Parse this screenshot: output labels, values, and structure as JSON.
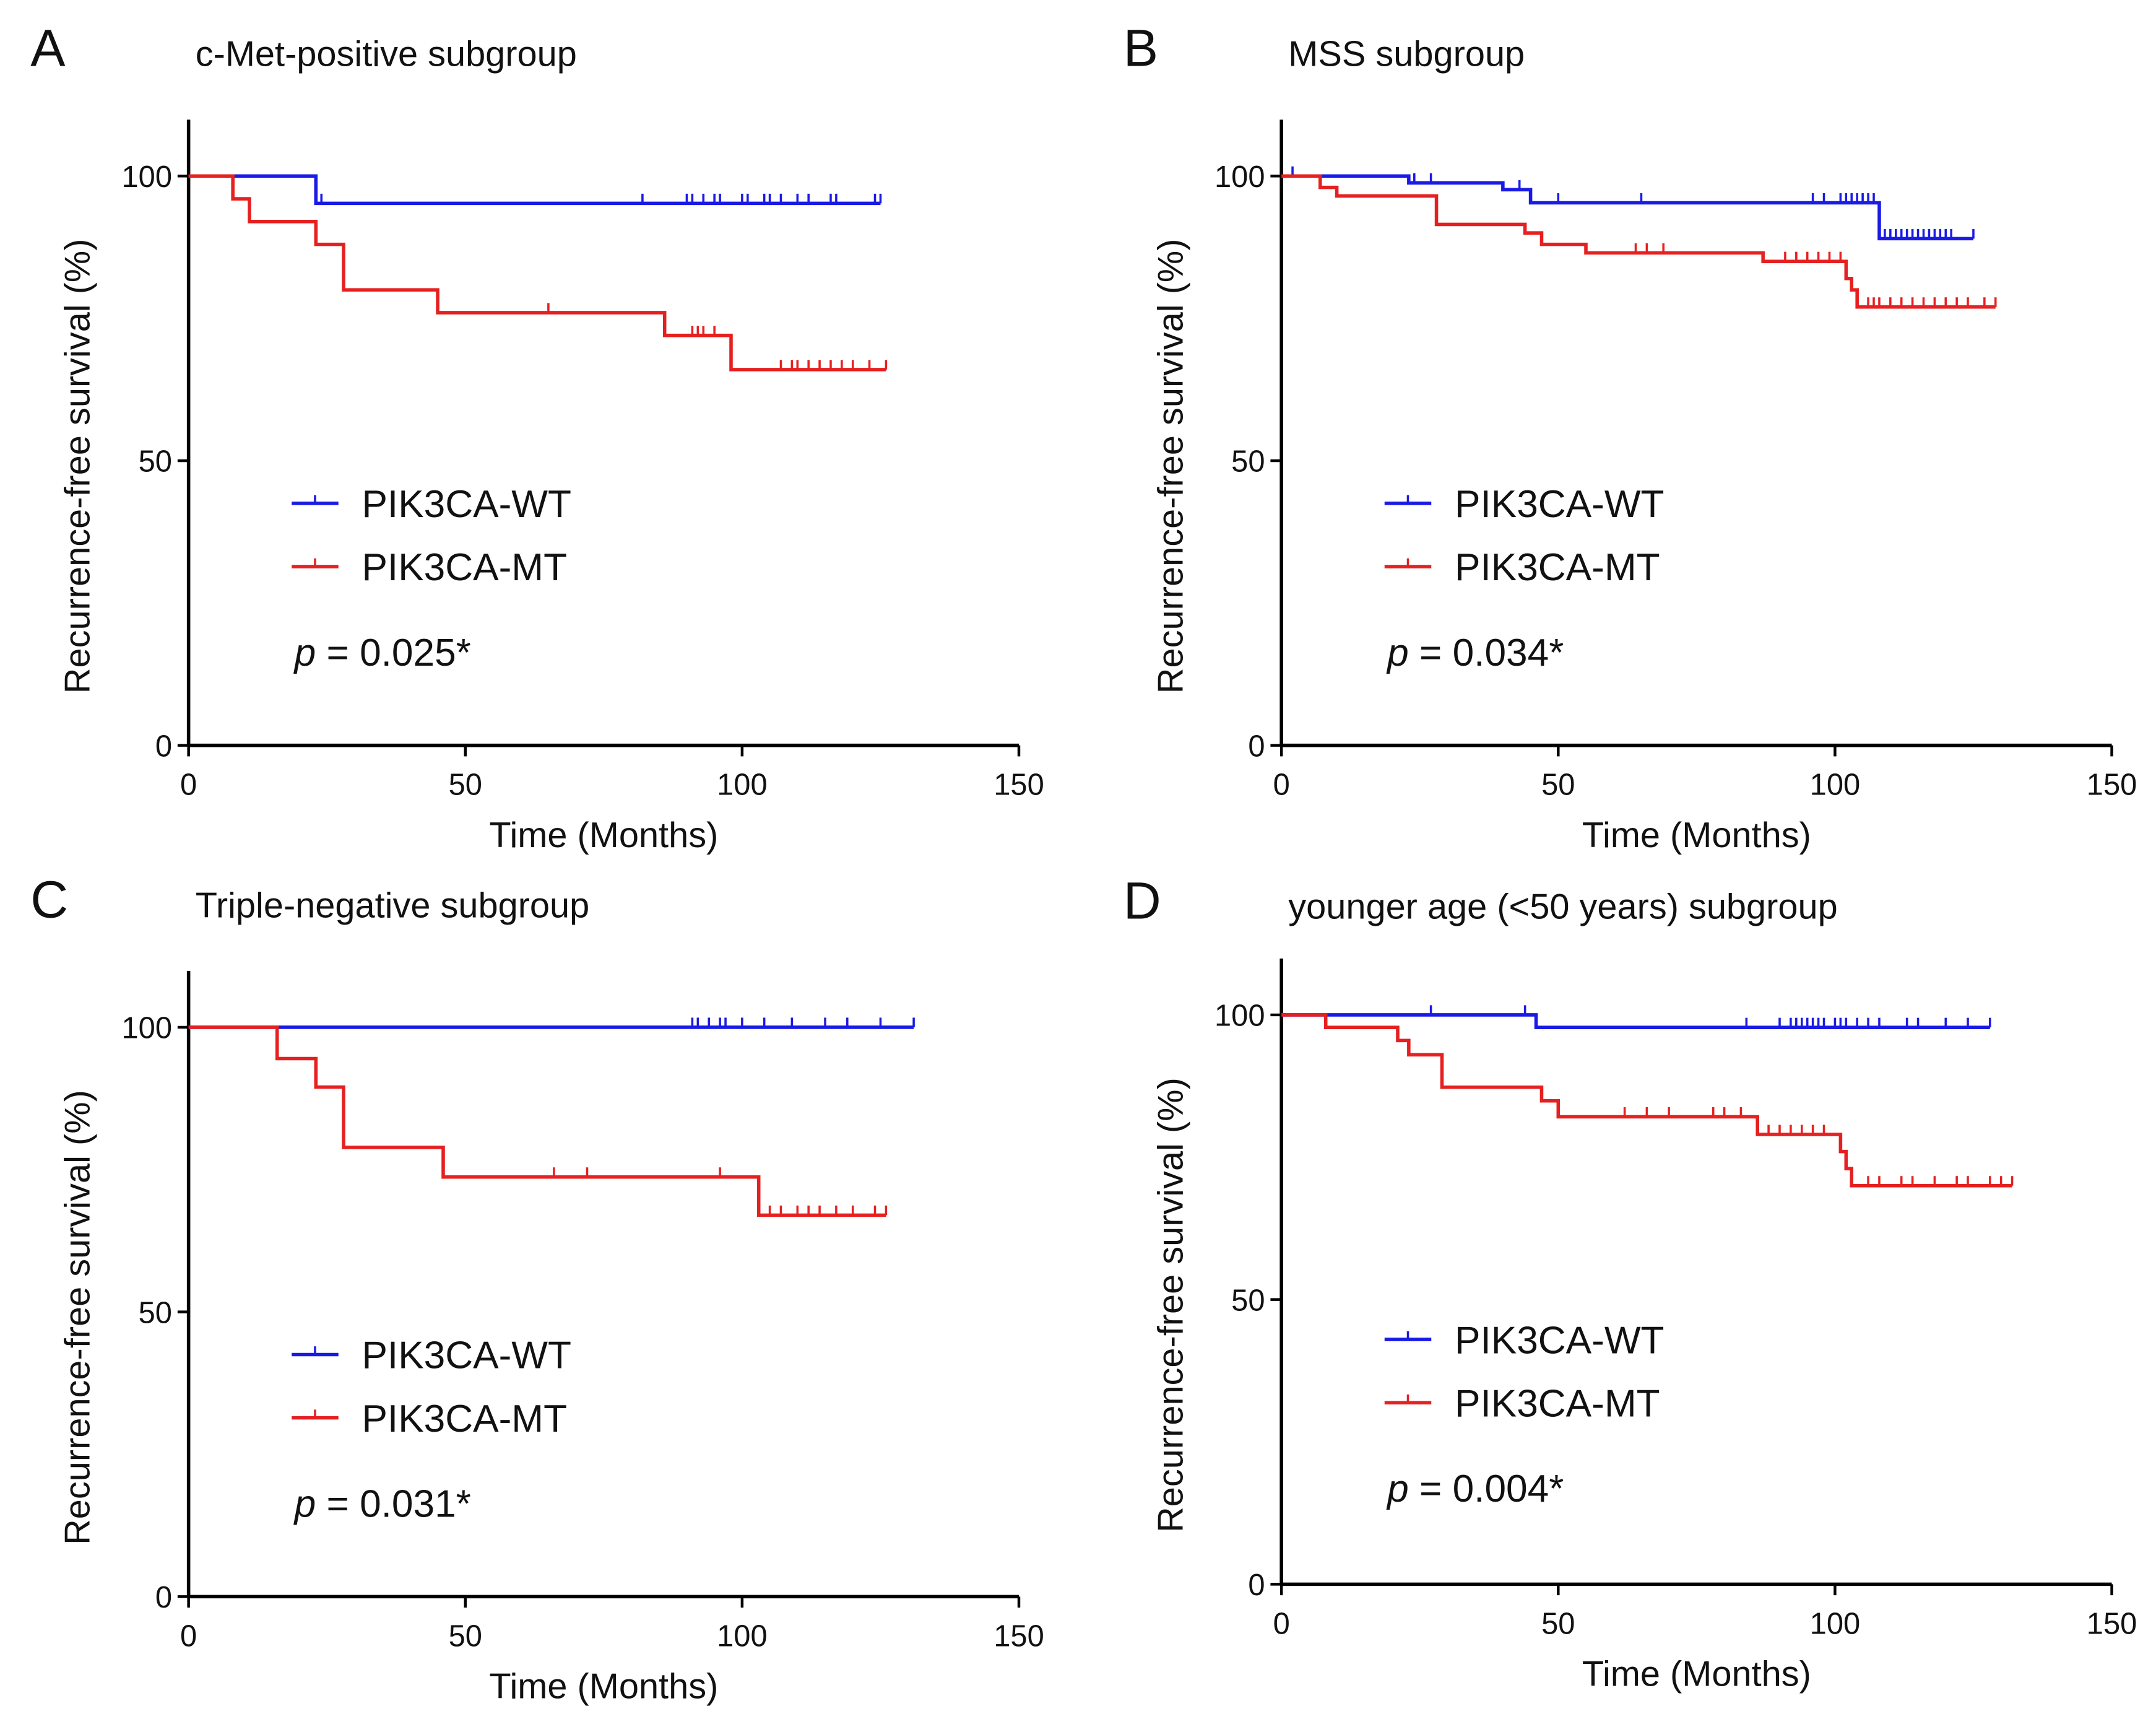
{
  "colors": {
    "wt": "#1a1ae6",
    "mt": "#e62020"
  },
  "chart_data": [
    {
      "type": "line",
      "panel": "A",
      "title": "c-Met-positive subgroup",
      "xlabel": "Time (Months)",
      "ylabel": "Recurrence-free survival (%)",
      "xlim": [
        0,
        150
      ],
      "ylim": [
        0,
        100
      ],
      "xticks": [
        0,
        50,
        100,
        150
      ],
      "yticks": [
        0,
        50,
        100
      ],
      "legend": "center-left",
      "p_prefix": "p",
      "p_value": " = 0.025*",
      "series": [
        {
          "name": "PIK3CA-WT",
          "steps": [
            [
              0,
              100
            ],
            [
              23,
              95.2
            ]
          ],
          "end": 125,
          "censored": [
            24,
            82,
            90,
            91,
            93,
            95,
            96,
            100,
            101,
            104,
            105,
            107,
            110,
            112,
            116,
            117,
            124,
            125
          ]
        },
        {
          "name": "PIK3CA-MT",
          "steps": [
            [
              0,
              100
            ],
            [
              8,
              96
            ],
            [
              11,
              92
            ],
            [
              23,
              88
            ],
            [
              28,
              80
            ],
            [
              45,
              76
            ],
            [
              86,
              72
            ],
            [
              98,
              66
            ]
          ],
          "end": 126,
          "censored": [
            65,
            91,
            92,
            93,
            95,
            107,
            109,
            110,
            112,
            114,
            116,
            118,
            120,
            123,
            126
          ]
        }
      ]
    },
    {
      "type": "line",
      "panel": "B",
      "title": "MSS subgroup",
      "xlabel": "Time (Months)",
      "ylabel": "Recurrence-free survival (%)",
      "xlim": [
        0,
        150
      ],
      "ylim": [
        0,
        100
      ],
      "xticks": [
        0,
        50,
        100,
        150
      ],
      "yticks": [
        0,
        50,
        100
      ],
      "legend": "center-left",
      "p_prefix": "p",
      "p_value": " = 0.034*",
      "series": [
        {
          "name": "PIK3CA-WT",
          "steps": [
            [
              0,
              100
            ],
            [
              23,
              98.8
            ],
            [
              40,
              97.6
            ],
            [
              45,
              95.3
            ],
            [
              108,
              89
            ]
          ],
          "end": 125,
          "censored": [
            2,
            24,
            27,
            43,
            50,
            65,
            96,
            98,
            101,
            102,
            103,
            104,
            105,
            106,
            107,
            109,
            110,
            111,
            112,
            113,
            114,
            115,
            116,
            117,
            118,
            119,
            120,
            121,
            125
          ]
        },
        {
          "name": "PIK3CA-MT",
          "steps": [
            [
              0,
              100
            ],
            [
              7,
              98
            ],
            [
              10,
              96.5
            ],
            [
              28,
              91.5
            ],
            [
              44,
              90
            ],
            [
              47,
              88
            ],
            [
              55,
              86.5
            ],
            [
              87,
              85
            ],
            [
              102,
              82
            ],
            [
              103,
              80
            ],
            [
              104,
              77
            ]
          ],
          "end": 129,
          "censored": [
            64,
            66,
            69,
            91,
            93,
            95,
            97,
            99,
            101,
            106,
            107,
            108,
            110,
            112,
            114,
            116,
            118,
            120,
            122,
            124,
            127,
            129
          ]
        }
      ]
    },
    {
      "type": "line",
      "panel": "C",
      "title": "Triple-negative subgroup",
      "xlabel": "Time (Months)",
      "ylabel": "Recurrence-free survival (%)",
      "xlim": [
        0,
        150
      ],
      "ylim": [
        0,
        100
      ],
      "xticks": [
        0,
        50,
        100,
        150
      ],
      "yticks": [
        0,
        50,
        100
      ],
      "legend": "center-left",
      "p_prefix": "p",
      "p_value": " = 0.031*",
      "series": [
        {
          "name": "PIK3CA-WT",
          "steps": [
            [
              0,
              100
            ]
          ],
          "end": 131,
          "censored": [
            91,
            92,
            94,
            96,
            97,
            100,
            104,
            109,
            115,
            119,
            125,
            131
          ]
        },
        {
          "name": "PIK3CA-MT",
          "steps": [
            [
              0,
              100
            ],
            [
              16,
              94.5
            ],
            [
              23,
              89.5
            ],
            [
              28,
              78.9
            ],
            [
              46,
              73.7
            ],
            [
              103,
              67
            ]
          ],
          "end": 126,
          "censored": [
            66,
            72,
            96,
            105,
            107,
            110,
            112,
            114,
            117,
            120,
            124,
            126
          ]
        }
      ]
    },
    {
      "type": "line",
      "panel": "D",
      "title": "younger age (<50 years) subgroup",
      "xlabel": "Time (Months)",
      "ylabel": "Recurrence-free survival (%)",
      "xlim": [
        0,
        150
      ],
      "ylim": [
        0,
        100
      ],
      "xticks": [
        0,
        50,
        100,
        150
      ],
      "yticks": [
        0,
        50,
        100
      ],
      "legend": "center-left",
      "p_prefix": "p",
      "p_value": " = 0.004*",
      "series": [
        {
          "name": "PIK3CA-WT",
          "steps": [
            [
              0,
              100
            ],
            [
              46,
              97.8
            ]
          ],
          "end": 128,
          "censored": [
            27,
            44,
            84,
            90,
            92,
            93,
            94,
            95,
            96,
            97,
            98,
            100,
            101,
            102,
            104,
            106,
            108,
            113,
            115,
            120,
            124,
            128
          ]
        },
        {
          "name": "PIK3CA-MT",
          "steps": [
            [
              0,
              100
            ],
            [
              8,
              97.8
            ],
            [
              21,
              95.5
            ],
            [
              23,
              93
            ],
            [
              29,
              87.3
            ],
            [
              47,
              84.9
            ],
            [
              50,
              82.1
            ],
            [
              86,
              79
            ],
            [
              101,
              76
            ],
            [
              102,
              73
            ],
            [
              103,
              70
            ]
          ],
          "end": 132,
          "censored": [
            62,
            66,
            70,
            78,
            80,
            83,
            88,
            90,
            92,
            94,
            96,
            98,
            106,
            108,
            112,
            114,
            118,
            122,
            124,
            128,
            130,
            132
          ]
        }
      ]
    }
  ]
}
